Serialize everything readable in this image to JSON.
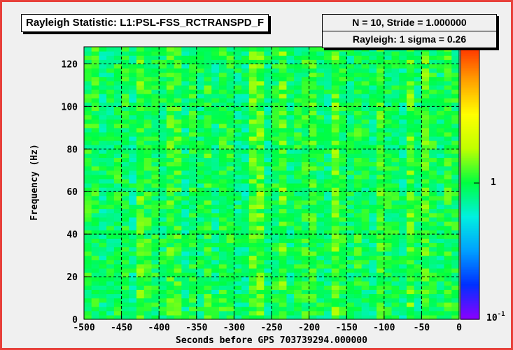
{
  "title": "Rayleigh Statistic:  L1:PSL-FSS_RCTRANSPD_F",
  "stats": {
    "line1": "N = 10,  Stride = 1.000000",
    "line2": "Rayleigh: 1 sigma = 0.26"
  },
  "chart_data": {
    "type": "heatmap",
    "xlabel": "Seconds before GPS 703739294.000000",
    "ylabel": "Frequency (Hz)",
    "xlim": [
      -500,
      0
    ],
    "ylim": [
      0,
      128
    ],
    "x_ticks": [
      -500,
      -450,
      -400,
      -350,
      -300,
      -250,
      -200,
      -150,
      -100,
      -50,
      0
    ],
    "x_tick_labels": [
      "-500",
      "-450",
      "-400",
      "-350",
      "-300",
      "-250",
      "-200",
      "-150",
      "-100",
      "-50",
      "0"
    ],
    "y_ticks": [
      0,
      20,
      40,
      60,
      80,
      100,
      120
    ],
    "y_tick_labels": [
      "0",
      "20",
      "40",
      "60",
      "80",
      "100",
      "120"
    ],
    "z_scale": "log",
    "z_range": [
      0.1,
      10
    ],
    "z_tick_labels": {
      "one": "1",
      "tenth_base": "10",
      "tenth_exp": "-1"
    },
    "grid": true,
    "bin_width_s": 10,
    "bin_height_hz": 2,
    "typical_value": 1,
    "colormap": [
      "#8a00ff",
      "#0030ff",
      "#00a0ff",
      "#00f0e0",
      "#00ff40",
      "#c0ff00",
      "#ffff00",
      "#ffa000",
      "#ff3000"
    ]
  },
  "colors": {
    "frame": "#e8403a",
    "panel": "#f0f0f0",
    "grid": "#000000"
  }
}
